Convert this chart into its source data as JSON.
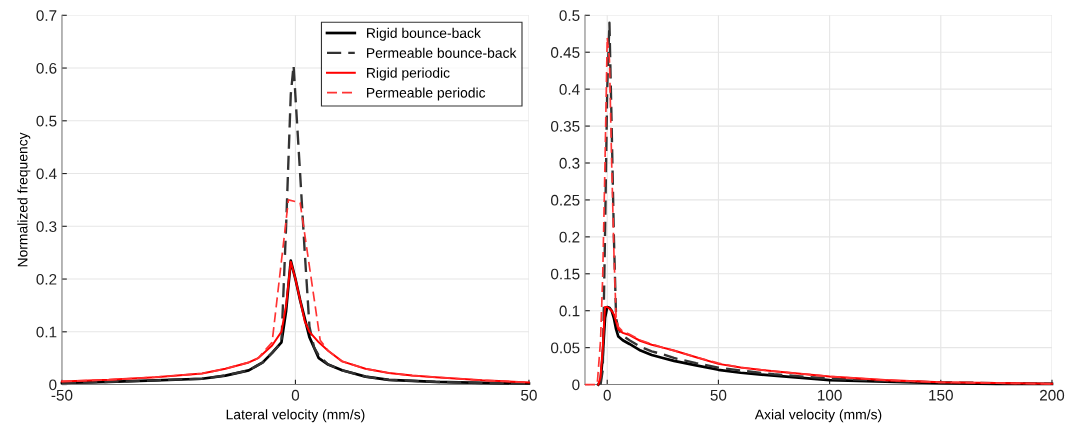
{
  "chart_data": [
    {
      "type": "line",
      "xlabel": "Lateral velocity (mm/s)",
      "ylabel": "Normalized frequency",
      "xlim": [
        -50,
        50
      ],
      "xticks": [
        -50,
        0,
        50
      ],
      "ylim": [
        0,
        0.7
      ],
      "yticks": [
        0,
        0.1,
        0.2,
        0.3,
        0.4,
        0.5,
        0.6,
        0.7
      ],
      "grid": true,
      "legend": "top right",
      "series": [
        {
          "name": "Rigid bounce-back",
          "color": "#000000",
          "line_style": "solid",
          "x": [
            -50,
            -40,
            -30,
            -20,
            -15,
            -10,
            -7,
            -5,
            -3,
            -2,
            -1,
            0,
            1,
            2,
            3,
            5,
            7,
            10,
            15,
            20,
            30,
            40,
            50
          ],
          "values": [
            0.003,
            0.005,
            0.008,
            0.011,
            0.017,
            0.027,
            0.042,
            0.06,
            0.08,
            0.14,
            0.235,
            0.2,
            0.16,
            0.125,
            0.09,
            0.05,
            0.038,
            0.027,
            0.015,
            0.009,
            0.005,
            0.003,
            0.002
          ]
        },
        {
          "name": "Permeable bounce-back",
          "color": "#333333",
          "line_style": "dashed",
          "x": [
            -50,
            -40,
            -30,
            -20,
            -15,
            -10,
            -7,
            -5,
            -3,
            -2,
            -1,
            -0.4,
            1,
            2,
            3,
            4,
            5,
            7,
            10,
            15,
            20,
            30,
            40,
            50
          ],
          "values": [
            0.003,
            0.005,
            0.008,
            0.011,
            0.017,
            0.027,
            0.042,
            0.06,
            0.08,
            0.3,
            0.55,
            0.605,
            0.4,
            0.25,
            0.11,
            0.07,
            0.055,
            0.038,
            0.027,
            0.015,
            0.009,
            0.005,
            0.003,
            0.002
          ]
        },
        {
          "name": "Rigid periodic",
          "color": "#ff0000",
          "line_style": "solid",
          "x": [
            -50,
            -40,
            -30,
            -20,
            -15,
            -10,
            -8,
            -5,
            -3,
            -2,
            -1,
            0,
            1,
            2,
            3,
            5,
            7,
            10,
            15,
            20,
            25,
            30,
            40,
            50
          ],
          "values": [
            0.006,
            0.009,
            0.014,
            0.021,
            0.03,
            0.042,
            0.05,
            0.074,
            0.1,
            0.15,
            0.233,
            0.2,
            0.16,
            0.12,
            0.1,
            0.08,
            0.064,
            0.044,
            0.03,
            0.022,
            0.017,
            0.014,
            0.008,
            0.004
          ]
        },
        {
          "name": "Permeable periodic",
          "color": "#ff3333",
          "line_style": "dashed",
          "x": [
            -50,
            -40,
            -30,
            -20,
            -15,
            -10,
            -8,
            -5,
            -1.5,
            1,
            5.3,
            7,
            10,
            15,
            20,
            25,
            30,
            40,
            50
          ],
          "values": [
            0.006,
            0.009,
            0.014,
            0.021,
            0.03,
            0.042,
            0.05,
            0.08,
            0.35,
            0.345,
            0.084,
            0.064,
            0.044,
            0.03,
            0.022,
            0.017,
            0.014,
            0.008,
            0.004
          ]
        }
      ]
    },
    {
      "type": "line",
      "xlabel": "Axial velocity (mm/s)",
      "xlim": [
        -10,
        200
      ],
      "xticks": [
        0,
        50,
        100,
        150,
        200
      ],
      "ylim": [
        0,
        0.5
      ],
      "yticks": [
        0,
        0.05,
        0.1,
        0.15,
        0.2,
        0.25,
        0.3,
        0.35,
        0.4,
        0.45,
        0.5
      ],
      "grid": true,
      "series": [
        {
          "color": "#000000",
          "line_style": "solid",
          "x": [
            -4,
            -3,
            -2,
            -1,
            0,
            1,
            2,
            3,
            4,
            5,
            7,
            10,
            15,
            20,
            25,
            30,
            40,
            50,
            60,
            75,
            100,
            125,
            150,
            175,
            200
          ],
          "values": [
            0,
            0.005,
            0.04,
            0.09,
            0.105,
            0.104,
            0.1,
            0.09,
            0.075,
            0.065,
            0.06,
            0.055,
            0.046,
            0.04,
            0.036,
            0.032,
            0.026,
            0.02,
            0.016,
            0.012,
            0.006,
            0.004,
            0.002,
            0.001,
            0.001
          ]
        },
        {
          "color": "#333333",
          "line_style": "dashed",
          "x": [
            -3,
            -2,
            -1,
            0,
            1,
            2,
            3,
            4,
            5,
            7,
            10,
            15,
            20,
            25,
            30,
            40,
            50,
            60,
            75,
            100,
            125,
            150,
            175,
            200
          ],
          "values": [
            0,
            0.02,
            0.2,
            0.4,
            0.49,
            0.35,
            0.2,
            0.09,
            0.075,
            0.066,
            0.06,
            0.051,
            0.045,
            0.041,
            0.036,
            0.029,
            0.023,
            0.019,
            0.014,
            0.008,
            0.005,
            0.003,
            0.002,
            0.001
          ]
        },
        {
          "color": "#ff0000",
          "line_style": "solid",
          "x": [
            -4,
            -3,
            -2,
            -1,
            0,
            1,
            2,
            3,
            4,
            5,
            7,
            10,
            15,
            20,
            25,
            30,
            40,
            50,
            60,
            75,
            100,
            125,
            150,
            175,
            200
          ],
          "values": [
            0,
            0.01,
            0.05,
            0.105,
            0.105,
            0.103,
            0.1,
            0.095,
            0.085,
            0.075,
            0.07,
            0.067,
            0.059,
            0.054,
            0.05,
            0.046,
            0.037,
            0.028,
            0.023,
            0.018,
            0.011,
            0.006,
            0.003,
            0.002,
            0.001
          ]
        },
        {
          "color": "#ff3333",
          "line_style": "dashed",
          "x": [
            -10,
            -4.5,
            -3,
            -2,
            -1,
            0,
            1,
            2,
            3,
            4,
            5,
            7,
            10,
            15,
            20,
            25,
            30,
            40,
            50,
            60,
            75,
            100,
            125,
            150,
            175,
            200
          ],
          "values": [
            0,
            0,
            0.06,
            0.15,
            0.3,
            0.47,
            0.44,
            0.3,
            0.18,
            0.09,
            0.078,
            0.072,
            0.068,
            0.06,
            0.055,
            0.05,
            0.046,
            0.037,
            0.029,
            0.023,
            0.018,
            0.011,
            0.006,
            0.003,
            0.002,
            0.001
          ]
        }
      ]
    }
  ]
}
